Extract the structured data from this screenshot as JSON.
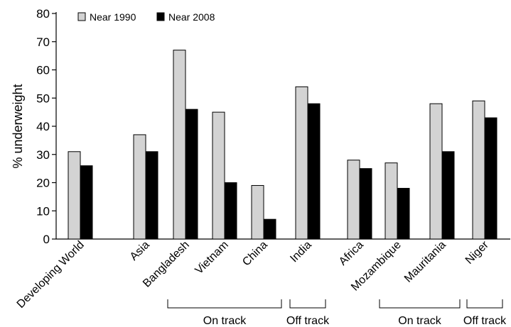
{
  "chart_data": {
    "type": "bar",
    "title": "",
    "xlabel": "",
    "ylabel": "% underweight",
    "ylim": [
      0,
      80
    ],
    "yticks": [
      0,
      10,
      20,
      30,
      40,
      50,
      60,
      70,
      80
    ],
    "grid": false,
    "legend_position": "top-left",
    "categories": [
      "Developing World",
      "Asia",
      "Bangladesh",
      "Vietnam",
      "China",
      "India",
      "Africa",
      "Mozambique",
      "Mauritania",
      "Niger"
    ],
    "series": [
      {
        "name": "Near 1990",
        "color": "#d3d3d3",
        "values": [
          31,
          37,
          67,
          45,
          19,
          54,
          28,
          27,
          48,
          49
        ]
      },
      {
        "name": "Near 2008",
        "color": "#000000",
        "values": [
          26,
          31,
          46,
          20,
          7,
          48,
          25,
          18,
          31,
          43
        ]
      }
    ],
    "group_brackets": [
      {
        "label": "On track",
        "from": "Bangladesh",
        "to": "China"
      },
      {
        "label": "Off track",
        "from": "India",
        "to": "India"
      },
      {
        "label": "On track",
        "from": "Mozambique",
        "to": "Mauritania"
      },
      {
        "label": "Off track",
        "from": "Niger",
        "to": "Niger"
      }
    ]
  }
}
